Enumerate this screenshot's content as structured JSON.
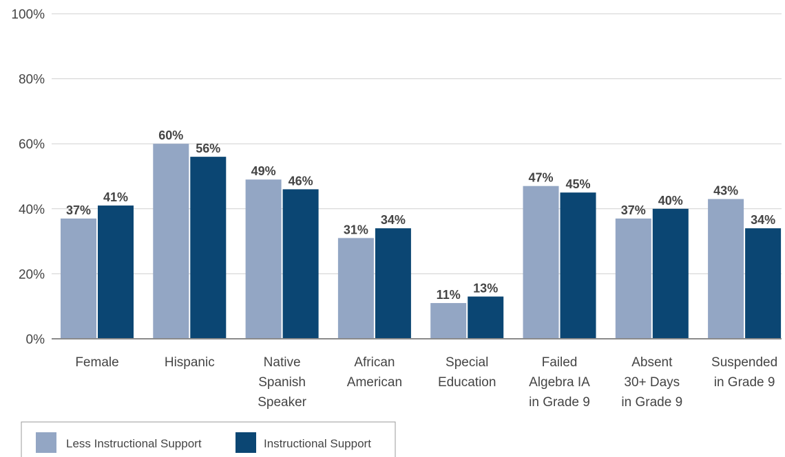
{
  "chart_data": {
    "type": "bar",
    "categories": [
      [
        "Female"
      ],
      [
        "Hispanic"
      ],
      [
        "Native",
        "Spanish",
        "Speaker"
      ],
      [
        "African",
        "American"
      ],
      [
        "Special",
        "Education"
      ],
      [
        "Failed",
        "Algebra IA",
        "in Grade 9"
      ],
      [
        "Absent",
        "30+ Days",
        "in Grade 9"
      ],
      [
        "Suspended",
        "in Grade 9"
      ]
    ],
    "series": [
      {
        "name": "Less Instructional Support",
        "color": "#93a6c4",
        "values": [
          37,
          60,
          49,
          31,
          11,
          47,
          37,
          43
        ],
        "labels": [
          "37%",
          "60%",
          "49%",
          "31%",
          "11%",
          "47%",
          "37%",
          "43%"
        ]
      },
      {
        "name": "Instructional Support",
        "color": "#0b4673",
        "values": [
          41,
          56,
          46,
          34,
          13,
          45,
          40,
          34
        ],
        "labels": [
          "41%",
          "56%",
          "46%",
          "34%",
          "13%",
          "45%",
          "40%",
          "34%"
        ]
      }
    ],
    "yticks": [
      {
        "value": 0,
        "label": "0%"
      },
      {
        "value": 20,
        "label": "20%"
      },
      {
        "value": 40,
        "label": "40%"
      },
      {
        "value": 60,
        "label": "60%"
      },
      {
        "value": 80,
        "label": "80%"
      },
      {
        "value": 100,
        "label": "100%"
      }
    ],
    "ylim": [
      0,
      100
    ],
    "grid": true,
    "legend": "bottom-left"
  }
}
